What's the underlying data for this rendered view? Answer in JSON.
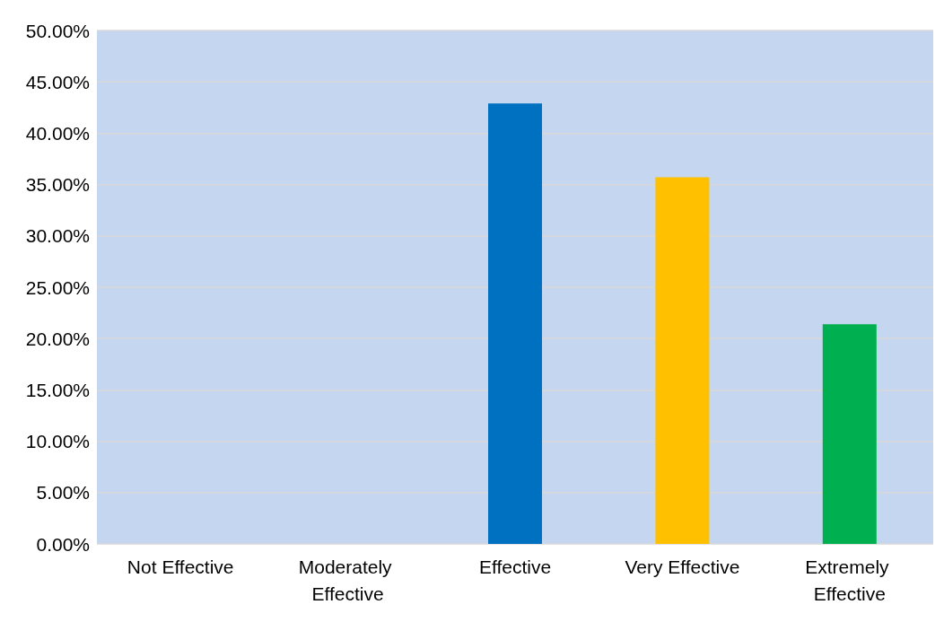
{
  "chart_data": {
    "type": "bar",
    "categories": [
      "Not Effective",
      "Moderately Effective",
      "Effective",
      "Very Effective",
      "Extremely Effective"
    ],
    "values": [
      0,
      0,
      42.9,
      35.7,
      21.4
    ],
    "colors": [
      "#0070c0",
      "#0070c0",
      "#0070c0",
      "#ffc000",
      "#00b050"
    ],
    "ylim": [
      0,
      50
    ],
    "yticks": [
      {
        "value": 0,
        "label": "0.00%"
      },
      {
        "value": 5,
        "label": "5.00%"
      },
      {
        "value": 10,
        "label": "10.00%"
      },
      {
        "value": 15,
        "label": "15.00%"
      },
      {
        "value": 20,
        "label": "20.00%"
      },
      {
        "value": 25,
        "label": "25.00%"
      },
      {
        "value": 30,
        "label": "30.00%"
      },
      {
        "value": 35,
        "label": "35.00%"
      },
      {
        "value": 40,
        "label": "40.00%"
      },
      {
        "value": 45,
        "label": "45.00%"
      },
      {
        "value": 50,
        "label": "50.00%"
      }
    ],
    "grid": "y"
  }
}
